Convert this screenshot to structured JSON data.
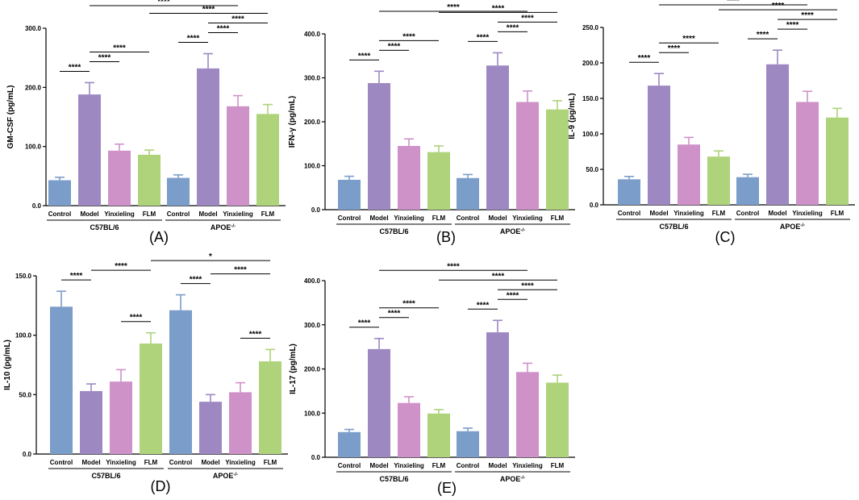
{
  "colors": {
    "control": "#7b9dc9",
    "model": "#9d88c2",
    "yinxieling": "#cf92c8",
    "flm": "#aed37a",
    "axis": "#000000"
  },
  "chart_data": [
    {
      "type": "bar",
      "panel": "(A)",
      "ylabel": "GM-CSF (pg/mL)",
      "ylim": [
        0,
        300
      ],
      "yticks": [
        0,
        100,
        200,
        300
      ],
      "ytick_labels": [
        "0.0",
        "100.0",
        "200.0",
        "300.0"
      ],
      "categories": [
        "Control",
        "Model",
        "Yinxieling",
        "FLM"
      ],
      "groups": [
        {
          "name": "C57BL/6",
          "values": [
            43,
            188,
            93,
            86
          ],
          "errors": [
            5,
            20,
            11,
            8
          ]
        },
        {
          "name": "APOE",
          "sup": "-/-",
          "values": [
            47,
            232,
            168,
            155
          ],
          "errors": [
            5,
            25,
            18,
            16
          ]
        }
      ],
      "significance": [
        {
          "from": [
            0,
            0
          ],
          "to": [
            0,
            1
          ],
          "label": "****"
        },
        {
          "from": [
            0,
            1
          ],
          "to": [
            0,
            2
          ],
          "label": "****"
        },
        {
          "from": [
            0,
            1
          ],
          "to": [
            0,
            3
          ],
          "label": "****"
        },
        {
          "from": [
            1,
            0
          ],
          "to": [
            1,
            1
          ],
          "label": "****"
        },
        {
          "from": [
            1,
            1
          ],
          "to": [
            1,
            2
          ],
          "label": "****"
        },
        {
          "from": [
            1,
            1
          ],
          "to": [
            1,
            3
          ],
          "label": "****"
        },
        {
          "from": [
            0,
            3
          ],
          "to": [
            1,
            3
          ],
          "label": "****"
        },
        {
          "from": [
            0,
            1
          ],
          "to": [
            1,
            2
          ],
          "label": "****"
        }
      ]
    },
    {
      "type": "bar",
      "panel": "(B)",
      "ylabel": "IFN-γ (pg/mL)",
      "ylim": [
        0,
        400
      ],
      "yticks": [
        0,
        100,
        200,
        300,
        400
      ],
      "ytick_labels": [
        "0.0",
        "100.0",
        "200.0",
        "300.0",
        "400.0"
      ],
      "categories": [
        "Control",
        "Model",
        "Yinxieling",
        "FLM"
      ],
      "groups": [
        {
          "name": "C57BL/6",
          "values": [
            68,
            288,
            145,
            131
          ],
          "errors": [
            8,
            27,
            16,
            14
          ]
        },
        {
          "name": "APOE",
          "sup": "-/-",
          "values": [
            72,
            328,
            245,
            228
          ],
          "errors": [
            8,
            29,
            25,
            20
          ]
        }
      ],
      "significance": [
        {
          "from": [
            0,
            0
          ],
          "to": [
            0,
            1
          ],
          "label": "****"
        },
        {
          "from": [
            0,
            1
          ],
          "to": [
            0,
            2
          ],
          "label": "****"
        },
        {
          "from": [
            0,
            1
          ],
          "to": [
            0,
            3
          ],
          "label": "****"
        },
        {
          "from": [
            1,
            0
          ],
          "to": [
            1,
            1
          ],
          "label": "****"
        },
        {
          "from": [
            1,
            1
          ],
          "to": [
            1,
            2
          ],
          "label": "****"
        },
        {
          "from": [
            1,
            1
          ],
          "to": [
            1,
            3
          ],
          "label": "****"
        },
        {
          "from": [
            0,
            3
          ],
          "to": [
            1,
            3
          ],
          "label": "****"
        },
        {
          "from": [
            0,
            1
          ],
          "to": [
            1,
            2
          ],
          "label": "****"
        }
      ]
    },
    {
      "type": "bar",
      "panel": "(C)",
      "ylabel": "IL-9 (pg/mL)",
      "ylim": [
        0,
        250
      ],
      "yticks": [
        0,
        50,
        100,
        150,
        200,
        250
      ],
      "ytick_labels": [
        "0.0",
        "50.0",
        "100.0",
        "150.0",
        "200.0",
        "250.0"
      ],
      "categories": [
        "Control",
        "Model",
        "Yinxieling",
        "FLM"
      ],
      "groups": [
        {
          "name": "C57BL/6",
          "values": [
            36,
            168,
            85,
            68
          ],
          "errors": [
            4,
            17,
            10,
            8
          ]
        },
        {
          "name": "APOE",
          "sup": "-/-",
          "values": [
            39,
            198,
            145,
            123
          ],
          "errors": [
            4,
            20,
            15,
            13
          ]
        }
      ],
      "significance": [
        {
          "from": [
            0,
            0
          ],
          "to": [
            0,
            1
          ],
          "label": "****"
        },
        {
          "from": [
            0,
            1
          ],
          "to": [
            0,
            2
          ],
          "label": "****"
        },
        {
          "from": [
            0,
            1
          ],
          "to": [
            0,
            3
          ],
          "label": "****"
        },
        {
          "from": [
            1,
            0
          ],
          "to": [
            1,
            1
          ],
          "label": "****"
        },
        {
          "from": [
            1,
            1
          ],
          "to": [
            1,
            2
          ],
          "label": "****"
        },
        {
          "from": [
            1,
            1
          ],
          "to": [
            1,
            3
          ],
          "label": "****"
        },
        {
          "from": [
            0,
            3
          ],
          "to": [
            1,
            3
          ],
          "label": "****"
        },
        {
          "from": [
            0,
            1
          ],
          "to": [
            1,
            2
          ],
          "label": "****"
        }
      ]
    },
    {
      "type": "bar",
      "panel": "(D)",
      "ylabel": "IL-10 (pg/mL)",
      "ylim": [
        0,
        150
      ],
      "yticks": [
        0,
        50,
        100,
        150
      ],
      "ytick_labels": [
        "0.0",
        "50.0",
        "100.0",
        "150.0"
      ],
      "categories": [
        "Control",
        "Model",
        "Yinxieling",
        "FLM"
      ],
      "groups": [
        {
          "name": "C57BL/6",
          "values": [
            124,
            53,
            61,
            93
          ],
          "errors": [
            13,
            6,
            10,
            9
          ]
        },
        {
          "name": "APOE",
          "sup": "-/-",
          "values": [
            121,
            44,
            52,
            78
          ],
          "errors": [
            13,
            6,
            8,
            10
          ]
        }
      ],
      "significance": [
        {
          "from": [
            0,
            0
          ],
          "to": [
            0,
            1
          ],
          "label": "****"
        },
        {
          "from": [
            0,
            2
          ],
          "to": [
            0,
            3
          ],
          "label": "****"
        },
        {
          "from": [
            0,
            1
          ],
          "to": [
            0,
            3
          ],
          "label": "****"
        },
        {
          "from": [
            1,
            0
          ],
          "to": [
            1,
            1
          ],
          "label": "****"
        },
        {
          "from": [
            1,
            2
          ],
          "to": [
            1,
            3
          ],
          "label": "****"
        },
        {
          "from": [
            1,
            1
          ],
          "to": [
            1,
            3
          ],
          "label": "****"
        },
        {
          "from": [
            0,
            3
          ],
          "to": [
            1,
            3
          ],
          "label": "*"
        }
      ]
    },
    {
      "type": "bar",
      "panel": "(E)",
      "ylabel": "IL-17 (pg/mL)",
      "ylim": [
        0,
        400
      ],
      "yticks": [
        0,
        100,
        200,
        300,
        400
      ],
      "ytick_labels": [
        "0.0",
        "100.0",
        "200.0",
        "300.0",
        "400.0"
      ],
      "categories": [
        "Control",
        "Model",
        "Yinxieling",
        "FLM"
      ],
      "groups": [
        {
          "name": "C57BL/6",
          "values": [
            57,
            245,
            123,
            99
          ],
          "errors": [
            6,
            24,
            14,
            9
          ]
        },
        {
          "name": "APOE",
          "sup": "-/-",
          "values": [
            59,
            283,
            193,
            169
          ],
          "errors": [
            7,
            27,
            20,
            17
          ]
        }
      ],
      "significance": [
        {
          "from": [
            0,
            0
          ],
          "to": [
            0,
            1
          ],
          "label": "****"
        },
        {
          "from": [
            0,
            1
          ],
          "to": [
            0,
            2
          ],
          "label": "****"
        },
        {
          "from": [
            0,
            1
          ],
          "to": [
            0,
            3
          ],
          "label": "****"
        },
        {
          "from": [
            1,
            0
          ],
          "to": [
            1,
            1
          ],
          "label": "****"
        },
        {
          "from": [
            1,
            1
          ],
          "to": [
            1,
            2
          ],
          "label": "****"
        },
        {
          "from": [
            1,
            1
          ],
          "to": [
            1,
            3
          ],
          "label": "****"
        },
        {
          "from": [
            0,
            3
          ],
          "to": [
            1,
            3
          ],
          "label": "****"
        },
        {
          "from": [
            0,
            1
          ],
          "to": [
            1,
            2
          ],
          "label": "****"
        }
      ]
    }
  ]
}
